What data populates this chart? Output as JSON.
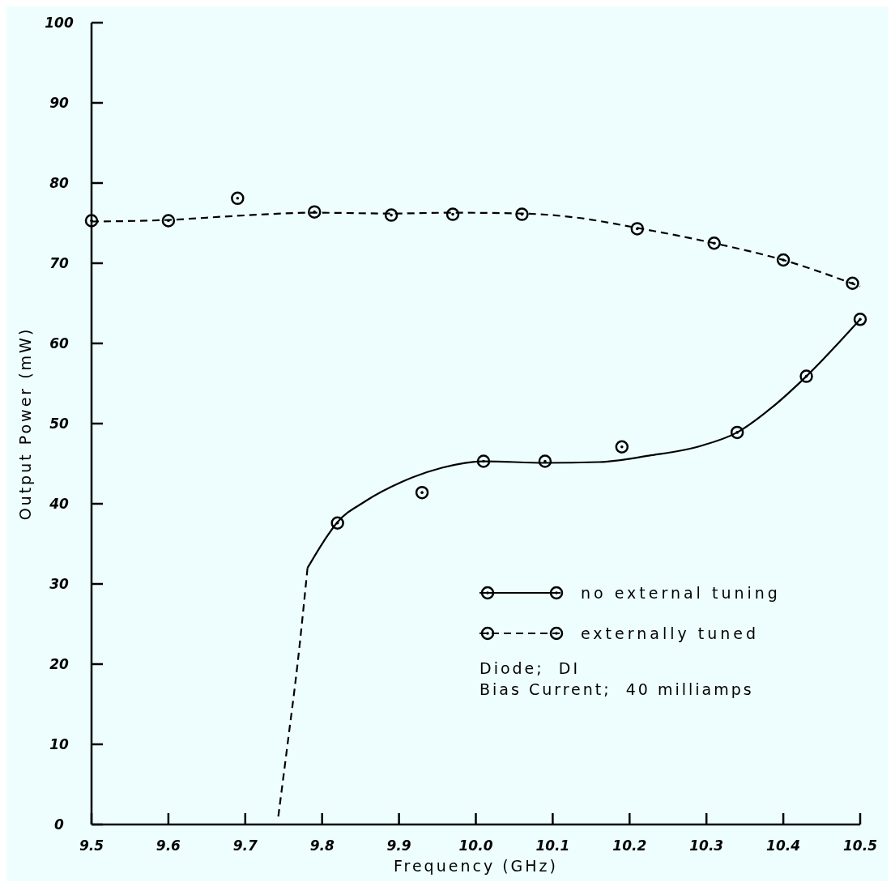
{
  "chart_data": {
    "type": "scatter",
    "xlabel": "Frequency (GHz)",
    "ylabel": "Output Power (mW)",
    "xlim": [
      9.5,
      10.5
    ],
    "ylim": [
      0,
      100
    ],
    "xticks": [
      9.5,
      9.6,
      9.7,
      9.8,
      9.9,
      {
        "value": 10,
        "label": "10.0"
      },
      10.1,
      10.2,
      10.3,
      10.4,
      10.5
    ],
    "yticks": [
      0,
      10,
      20,
      30,
      40,
      50,
      60,
      70,
      80,
      90,
      100
    ],
    "grid": false,
    "legend": "bottom right",
    "series": [
      {
        "name": "no external tuning",
        "marker": "circle",
        "color": "#000000",
        "line_style": "solid",
        "x": [
          9.82,
          9.93,
          10.01,
          10.09,
          10.19,
          10.34,
          10.43,
          10.5
        ],
        "values": [
          37.6,
          41.4,
          45.3,
          45.3,
          47.1,
          48.9,
          55.9,
          63.0
        ]
      },
      {
        "name": "externally tuned",
        "marker": "circle",
        "color": "#000000",
        "line_style": "dashed",
        "x": [
          9.5,
          9.6,
          9.69,
          9.79,
          9.89,
          9.97,
          10.06,
          10.21,
          10.31,
          10.4,
          10.49
        ],
        "values": [
          75.3,
          75.3,
          78.1,
          76.4,
          76.0,
          76.1,
          76.1,
          74.3,
          72.5,
          70.4,
          67.5
        ]
      },
      {
        "type": "line",
        "color": "#000000",
        "line_style": "solid",
        "x": [
          9.781,
          9.802,
          9.819,
          9.856,
          9.903,
          9.956,
          10.01,
          10.09,
          10.16,
          10.225,
          10.292,
          10.34,
          10.385,
          10.43,
          10.5
        ],
        "values": [
          32.0,
          35.3,
          37.6,
          40.3,
          42.7,
          44.5,
          45.3,
          45.1,
          45.2,
          46.0,
          47.2,
          48.9,
          52.0,
          55.9,
          63.0
        ]
      },
      {
        "type": "line",
        "color": "#000000",
        "line_style": "dashed",
        "x": [
          9.743,
          9.755,
          9.768,
          9.781
        ],
        "values": [
          1.0,
          10.0,
          20.0,
          32.0
        ]
      },
      {
        "type": "line",
        "color": "#000000",
        "line_style": "dashed",
        "x": [
          9.5,
          9.6,
          9.687,
          9.79,
          9.89,
          9.97,
          10.06,
          10.13,
          10.21,
          10.31,
          10.4,
          10.5
        ],
        "values": [
          75.2,
          75.4,
          75.9,
          76.3,
          76.2,
          76.3,
          76.2,
          75.7,
          74.4,
          72.5,
          70.4,
          67.1
        ]
      }
    ],
    "annotations": [
      "Diode;  DI",
      "Bias Current;  40 milliamps"
    ]
  }
}
